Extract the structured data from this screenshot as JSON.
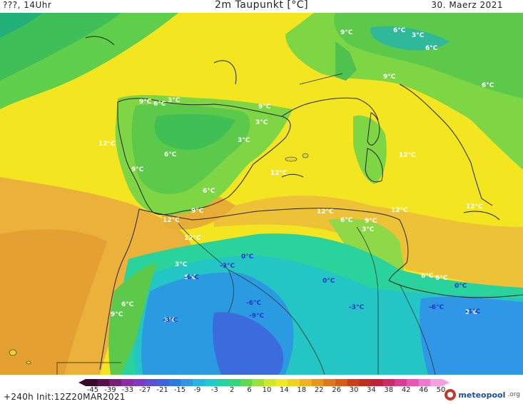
{
  "header": {
    "left": "???, 14Uhr",
    "title": "2m Taupunkt [°C]",
    "date": "30. Maerz 2021"
  },
  "map": {
    "labels_warm": [
      "9°C",
      "6°C",
      "3°C",
      "6°C",
      "9°C",
      "6°C",
      "9°C",
      "6°C",
      "3°C",
      "9°C",
      "3°C",
      "3°C",
      "12°C",
      "6°C",
      "9°C",
      "12°C",
      "6°C",
      "12°C",
      "9°C",
      "12°C",
      "12°C",
      "6°C",
      "9°C",
      "3°C",
      "12°C",
      "12°C",
      "12°C",
      "3°C",
      "6°C",
      "6°C",
      "6°C",
      "3°C",
      "9°C",
      "6°C",
      "3°C"
    ],
    "labels_cold": [
      "0°C",
      "-3°C",
      "0°C",
      "-6°C",
      "-9°C",
      "-3°C",
      "-6°C",
      "-3°C",
      "0°C",
      "-6°C",
      "-3°C"
    ]
  },
  "colorbar": {
    "ticks": [
      "-45",
      "-39",
      "-33",
      "-27",
      "-21",
      "-15",
      "-9",
      "-3",
      "2",
      "6",
      "10",
      "14",
      "18",
      "22",
      "26",
      "30",
      "34",
      "38",
      "42",
      "46",
      "50"
    ],
    "colors": [
      "#3a0a2e",
      "#5a0f4a",
      "#7a1f78",
      "#8e2aa8",
      "#7b39c4",
      "#5a4fd6",
      "#3e63dc",
      "#2a7be0",
      "#2f97e6",
      "#25b6e6",
      "#1fcbd0",
      "#22d3a4",
      "#33d67a",
      "#5fda4a",
      "#9be235",
      "#cfe82a",
      "#f2ea20",
      "#f2d21e",
      "#efb31d",
      "#e9951c",
      "#e2761a",
      "#da5a18",
      "#cf3f17",
      "#c42a1e",
      "#c21f3a",
      "#cc2a66",
      "#dd3b93",
      "#ea55b8",
      "#f178d0",
      "#f6a0e0"
    ]
  },
  "footer": {
    "run": "+240h  Init:12Z20MAR2021",
    "brand_name": "meteopool",
    "brand_tld": ".org"
  }
}
